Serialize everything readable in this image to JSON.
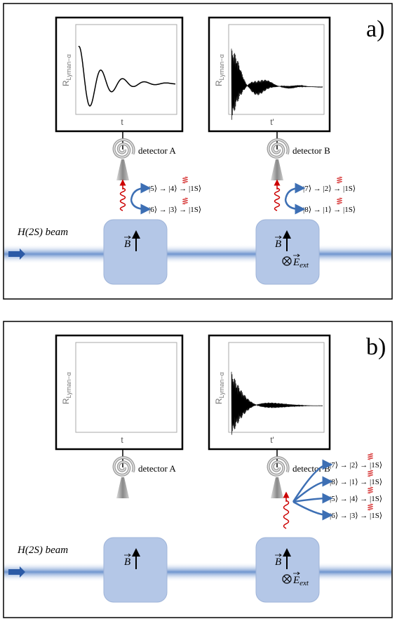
{
  "panels": [
    {
      "label": "a)",
      "plots": [
        {
          "y_label": "R",
          "y_label_sub": "Lyman−α",
          "x_label": "t"
        },
        {
          "y_label": "R",
          "y_label_sub": "Lyman−α",
          "x_label": "t'"
        }
      ],
      "detectors": [
        "detector A",
        "detector B"
      ],
      "transitions": [
        [
          "|5⟩ → |4⟩ → |1S⟩",
          "|6⟩ → |3⟩ → |1S⟩"
        ],
        [
          "|7⟩ → |2⟩ → |1S⟩",
          "|8⟩ → |1⟩ → |1S⟩"
        ]
      ],
      "beam_label": "H(2S) beam",
      "field_b": "B",
      "field_e": "E",
      "field_e_sub": "ext"
    },
    {
      "label": "b)",
      "plots": [
        {
          "y_label": "R",
          "y_label_sub": "Lyman−α",
          "x_label": "t"
        },
        {
          "y_label": "R",
          "y_label_sub": "Lyman−α",
          "x_label": "t'"
        }
      ],
      "detectors": [
        "detector A",
        "detector B"
      ],
      "transitions": [
        [],
        [
          "|7⟩ → |2⟩ → |1S⟩",
          "|8⟩ → |1⟩ → |1S⟩",
          "|5⟩ → |4⟩ → |1S⟩",
          "|6⟩ → |3⟩ → |1S⟩"
        ]
      ],
      "beam_label": "H(2S) beam",
      "field_b": "B",
      "field_e": "E",
      "field_e_sub": "ext"
    }
  ]
}
